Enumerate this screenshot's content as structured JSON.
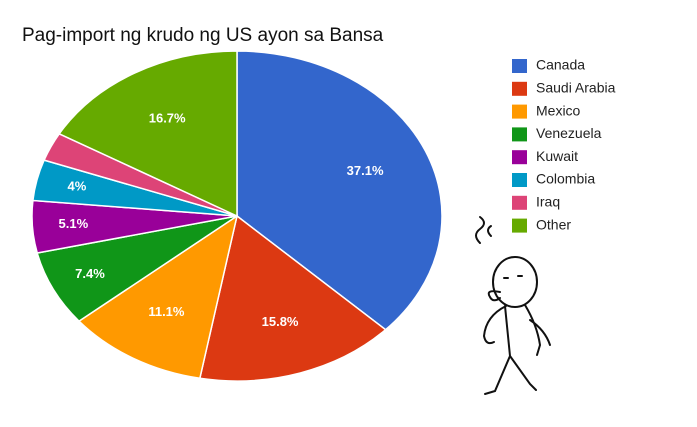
{
  "chart_data": {
    "type": "pie",
    "title": "Pag-import ng krudo ng US ayon sa Bansa",
    "categories": [
      "Canada",
      "Saudi Arabia",
      "Mexico",
      "Venezuela",
      "Kuwait",
      "Colombia",
      "Iraq",
      "Other"
    ],
    "values": [
      37.1,
      15.8,
      11.1,
      7.4,
      5.1,
      4,
      2.8,
      16.7
    ],
    "value_labels": [
      "37.1%",
      "15.8%",
      "11.1%",
      "7.4%",
      "5.1%",
      "4%",
      null,
      "16.7%"
    ],
    "colors": [
      "#3366cc",
      "#dc3912",
      "#ff9900",
      "#109618",
      "#990099",
      "#0099c6",
      "#dd4477",
      "#66aa00"
    ],
    "legend": "right"
  }
}
